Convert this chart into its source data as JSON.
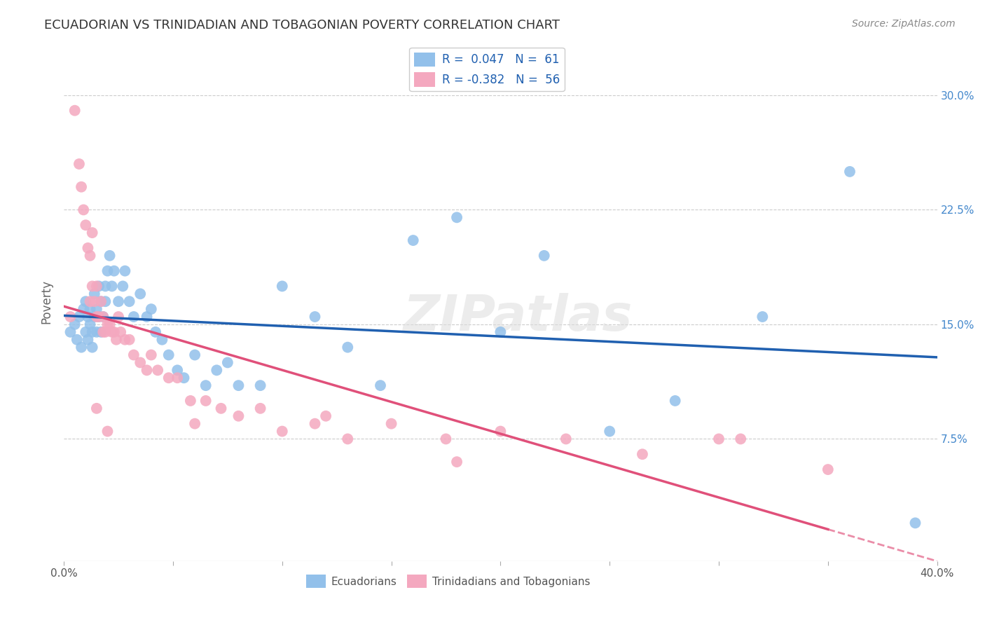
{
  "title": "ECUADORIAN VS TRINIDADIAN AND TOBAGONIAN POVERTY CORRELATION CHART",
  "source": "Source: ZipAtlas.com",
  "ylabel": "Poverty",
  "ytick_labels": [
    "7.5%",
    "15.0%",
    "22.5%",
    "30.0%"
  ],
  "ytick_values": [
    0.075,
    0.15,
    0.225,
    0.3
  ],
  "xlim": [
    0.0,
    0.4
  ],
  "ylim": [
    -0.005,
    0.335
  ],
  "blue_color": "#92C0EA",
  "pink_color": "#F4A8BF",
  "blue_line_color": "#2060B0",
  "pink_line_color": "#E0507A",
  "legend_text_color": "#2060B0",
  "legend_R1": "R =  0.047",
  "legend_N1": "N =  61",
  "legend_R2": "R = -0.382",
  "legend_N2": "N =  56",
  "watermark": "ZIPatlas",
  "ecuadorians_x": [
    0.003,
    0.005,
    0.006,
    0.007,
    0.008,
    0.009,
    0.01,
    0.01,
    0.011,
    0.011,
    0.012,
    0.012,
    0.013,
    0.013,
    0.014,
    0.014,
    0.015,
    0.015,
    0.016,
    0.016,
    0.017,
    0.017,
    0.018,
    0.019,
    0.019,
    0.02,
    0.021,
    0.022,
    0.023,
    0.025,
    0.027,
    0.028,
    0.03,
    0.032,
    0.035,
    0.038,
    0.04,
    0.042,
    0.045,
    0.048,
    0.052,
    0.055,
    0.06,
    0.065,
    0.07,
    0.075,
    0.08,
    0.09,
    0.1,
    0.115,
    0.13,
    0.145,
    0.16,
    0.18,
    0.2,
    0.22,
    0.25,
    0.28,
    0.32,
    0.36,
    0.39
  ],
  "ecuadorians_y": [
    0.145,
    0.15,
    0.14,
    0.155,
    0.135,
    0.16,
    0.165,
    0.145,
    0.155,
    0.14,
    0.15,
    0.16,
    0.145,
    0.135,
    0.155,
    0.17,
    0.145,
    0.16,
    0.175,
    0.155,
    0.165,
    0.145,
    0.155,
    0.175,
    0.165,
    0.185,
    0.195,
    0.175,
    0.185,
    0.165,
    0.175,
    0.185,
    0.165,
    0.155,
    0.17,
    0.155,
    0.16,
    0.145,
    0.14,
    0.13,
    0.12,
    0.115,
    0.13,
    0.11,
    0.12,
    0.125,
    0.11,
    0.11,
    0.175,
    0.155,
    0.135,
    0.11,
    0.205,
    0.22,
    0.145,
    0.195,
    0.08,
    0.1,
    0.155,
    0.25,
    0.02
  ],
  "trinidadians_x": [
    0.003,
    0.005,
    0.007,
    0.008,
    0.009,
    0.01,
    0.011,
    0.012,
    0.012,
    0.013,
    0.013,
    0.014,
    0.015,
    0.015,
    0.016,
    0.017,
    0.018,
    0.018,
    0.019,
    0.02,
    0.021,
    0.022,
    0.023,
    0.024,
    0.025,
    0.026,
    0.028,
    0.03,
    0.032,
    0.035,
    0.038,
    0.04,
    0.043,
    0.048,
    0.052,
    0.058,
    0.065,
    0.072,
    0.08,
    0.09,
    0.1,
    0.115,
    0.13,
    0.15,
    0.175,
    0.2,
    0.23,
    0.265,
    0.31,
    0.35,
    0.015,
    0.02,
    0.06,
    0.12,
    0.18,
    0.3
  ],
  "trinidadians_y": [
    0.155,
    0.29,
    0.255,
    0.24,
    0.225,
    0.215,
    0.2,
    0.195,
    0.165,
    0.21,
    0.175,
    0.165,
    0.175,
    0.155,
    0.155,
    0.165,
    0.145,
    0.155,
    0.145,
    0.15,
    0.15,
    0.145,
    0.145,
    0.14,
    0.155,
    0.145,
    0.14,
    0.14,
    0.13,
    0.125,
    0.12,
    0.13,
    0.12,
    0.115,
    0.115,
    0.1,
    0.1,
    0.095,
    0.09,
    0.095,
    0.08,
    0.085,
    0.075,
    0.085,
    0.075,
    0.08,
    0.075,
    0.065,
    0.075,
    0.055,
    0.095,
    0.08,
    0.085,
    0.09,
    0.06,
    0.075
  ]
}
